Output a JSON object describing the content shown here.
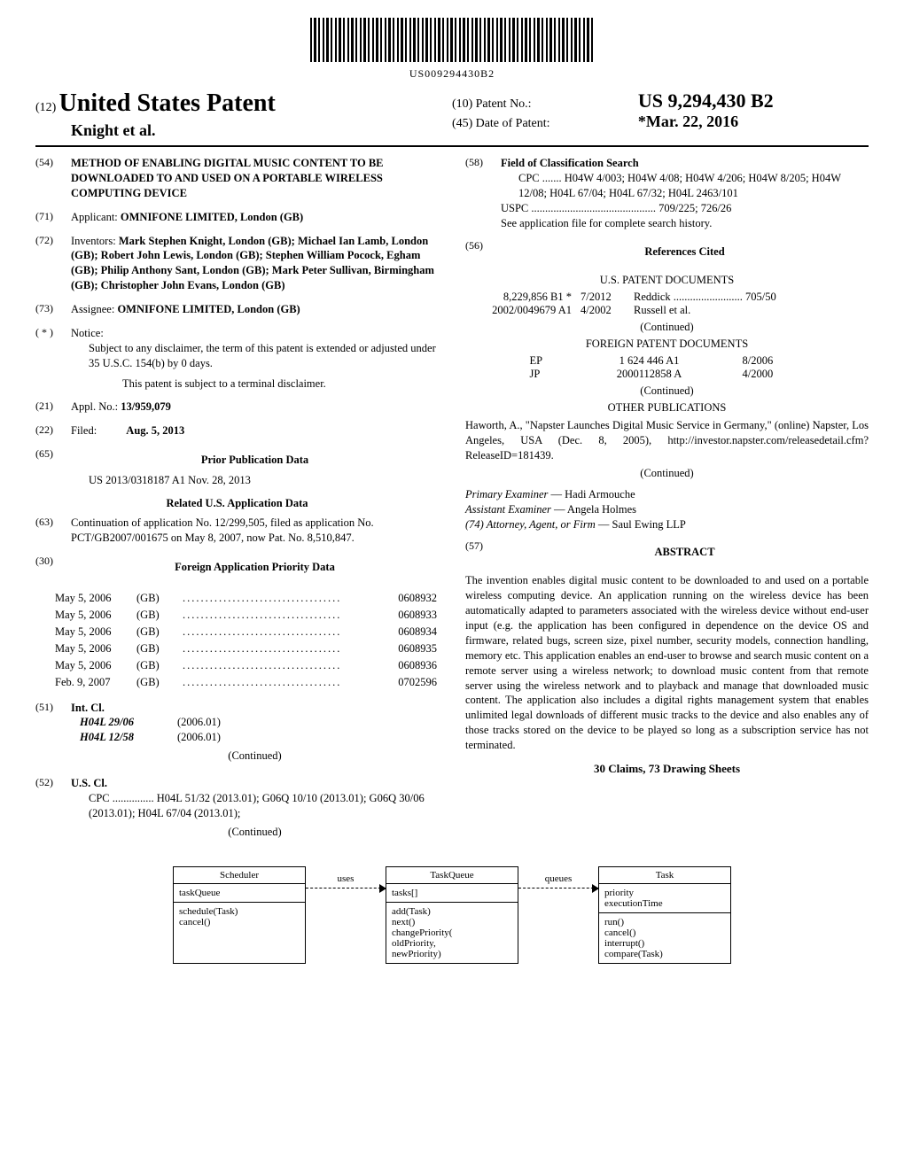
{
  "barcode_number": "US009294430B2",
  "header": {
    "type_prefix": "(12)",
    "type_label": "United States Patent",
    "authors": "Knight et al.",
    "patent_no_prefix": "(10)",
    "patent_no_label": "Patent No.:",
    "patent_no": "US 9,294,430 B2",
    "date_prefix": "(45)",
    "date_label": "Date of Patent:",
    "date_value": "*Mar. 22, 2016"
  },
  "left": {
    "s54": {
      "num": "(54)",
      "title": "METHOD OF ENABLING DIGITAL MUSIC CONTENT TO BE DOWNLOADED TO AND USED ON A PORTABLE WIRELESS COMPUTING DEVICE"
    },
    "s71": {
      "num": "(71)",
      "label": "Applicant:",
      "value": "OMNIFONE LIMITED, London (GB)"
    },
    "s72": {
      "num": "(72)",
      "label": "Inventors:",
      "value": "Mark Stephen Knight, London (GB); Michael Ian Lamb, London (GB); Robert John Lewis, London (GB); Stephen William Pocock, Egham (GB); Philip Anthony Sant, London (GB); Mark Peter Sullivan, Birmingham (GB); Christopher John Evans, London (GB)"
    },
    "s73": {
      "num": "(73)",
      "label": "Assignee:",
      "value": "OMNIFONE LIMITED, London (GB)"
    },
    "sstar": {
      "num": "( * )",
      "label": "Notice:",
      "value1": "Subject to any disclaimer, the term of this patent is extended or adjusted under 35 U.S.C. 154(b) by 0 days.",
      "value2": "This patent is subject to a terminal disclaimer."
    },
    "s21": {
      "num": "(21)",
      "label": "Appl. No.:",
      "value": "13/959,079"
    },
    "s22": {
      "num": "(22)",
      "label": "Filed:",
      "value": "Aug. 5, 2013"
    },
    "s65": {
      "num": "(65)",
      "title": "Prior Publication Data",
      "value": "US 2013/0318187 A1      Nov. 28, 2013"
    },
    "related_title": "Related U.S. Application Data",
    "s63": {
      "num": "(63)",
      "value": "Continuation of application No. 12/299,505, filed as application No. PCT/GB2007/001675 on May 8, 2007, now Pat. No. 8,510,847."
    },
    "s30": {
      "num": "(30)",
      "title": "Foreign Application Priority Data"
    },
    "priority": [
      {
        "date": "May 5, 2006",
        "cc": "(GB)",
        "num": "0608932"
      },
      {
        "date": "May 5, 2006",
        "cc": "(GB)",
        "num": "0608933"
      },
      {
        "date": "May 5, 2006",
        "cc": "(GB)",
        "num": "0608934"
      },
      {
        "date": "May 5, 2006",
        "cc": "(GB)",
        "num": "0608935"
      },
      {
        "date": "May 5, 2006",
        "cc": "(GB)",
        "num": "0608936"
      },
      {
        "date": "Feb. 9, 2007",
        "cc": "(GB)",
        "num": "0702596"
      }
    ],
    "s51": {
      "num": "(51)",
      "label": "Int. Cl.",
      "rows": [
        {
          "code": "H04L 29/06",
          "year": "(2006.01)"
        },
        {
          "code": "H04L 12/58",
          "year": "(2006.01)"
        }
      ],
      "continued": "(Continued)"
    },
    "s52": {
      "num": "(52)",
      "label": "U.S. Cl.",
      "value": "CPC ............... H04L 51/32 (2013.01); G06Q 10/10 (2013.01); G06Q 30/06 (2013.01); H04L 67/04 (2013.01);",
      "continued": "(Continued)"
    }
  },
  "right": {
    "s58": {
      "num": "(58)",
      "label": "Field of Classification Search",
      "cpc": "CPC ....... H04W 4/003; H04W 4/08; H04W 4/206; H04W 8/205; H04W 12/08; H04L 67/04; H04L 67/32; H04L 2463/101",
      "uspc": "USPC ............................................. 709/225; 726/26",
      "note": "See application file for complete search history."
    },
    "s56": {
      "num": "(56)",
      "title": "References Cited"
    },
    "us_docs_title": "U.S. PATENT DOCUMENTS",
    "us_docs": [
      {
        "num": "8,229,856 B1 *",
        "date": "7/2012",
        "name": "Reddick ......................... 705/50"
      },
      {
        "num": "2002/0049679 A1",
        "date": "4/2002",
        "name": "Russell et al."
      }
    ],
    "continued1": "(Continued)",
    "foreign_title": "FOREIGN PATENT DOCUMENTS",
    "foreign_docs": [
      {
        "cc": "EP",
        "num": "1 624 446 A1",
        "date": "8/2006"
      },
      {
        "cc": "JP",
        "num": "2000112858 A",
        "date": "4/2000"
      }
    ],
    "continued2": "(Continued)",
    "other_pubs_title": "OTHER PUBLICATIONS",
    "other_pubs_text": "Haworth, A., \"Napster Launches Digital Music Service in Germany,\" (online) Napster, Los Angeles, USA (Dec. 8, 2005), http://investor.napster.com/releasedetail.cfm?ReleaseID=181439.",
    "continued3": "(Continued)",
    "examiner_label": "Primary Examiner",
    "examiner": " — Hadi Armouche",
    "assist_label": "Assistant Examiner",
    "assist": " — Angela Holmes",
    "attorney_label": "(74) Attorney, Agent, or Firm",
    "attorney": " — Saul Ewing LLP",
    "s57": {
      "num": "(57)",
      "title": "ABSTRACT"
    },
    "abstract": "The invention enables digital music content to be downloaded to and used on a portable wireless computing device. An application running on the wireless device has been automatically adapted to parameters associated with the wireless device without end-user input (e.g. the application has been configured in dependence on the device OS and firmware, related bugs, screen size, pixel number, security models, connection handling, memory etc. This application enables an end-user to browse and search music content on a remote server using a wireless network; to download music content from that remote server using the wireless network and to playback and manage that downloaded music content. The application also includes a digital rights management system that enables unlimited legal downloads of different music tracks to the device and also enables any of those tracks stored on the device to be played so long as a subscription service has not terminated.",
    "claims": "30 Claims, 73 Drawing Sheets"
  },
  "diagram": {
    "arrow1": "uses",
    "arrow2": "queues",
    "box1": {
      "title": "Scheduler",
      "sec1": "taskQueue",
      "sec2": "schedule(Task)\ncancel()"
    },
    "box2": {
      "title": "TaskQueue",
      "sec1": "tasks[]",
      "sec2": "add(Task)\nnext()\nchangePriority(\noldPriority,\nnewPriority)"
    },
    "box3": {
      "title": "Task",
      "sec1": "priority\nexecutionTime",
      "sec2": "run()\ncancel()\ninterrupt()\ncompare(Task)"
    }
  }
}
